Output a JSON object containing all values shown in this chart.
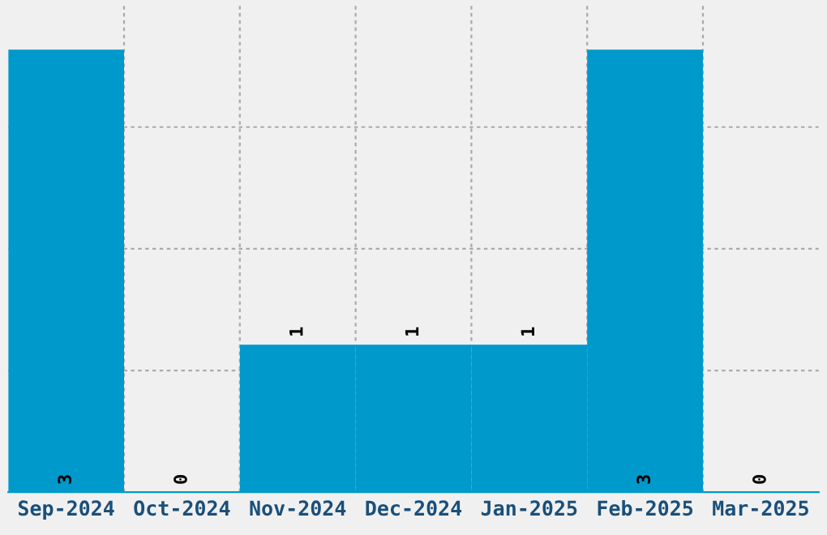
{
  "chart_data": {
    "type": "bar",
    "categories": [
      "Sep-2024",
      "Oct-2024",
      "Nov-2024",
      "Dec-2024",
      "Jan-2025",
      "Feb-2025",
      "Mar-2025"
    ],
    "values": [
      3,
      0,
      1,
      1,
      1,
      3,
      0
    ],
    "color": "#0099cc",
    "data_labels": true,
    "ylim": [
      0,
      3.3
    ],
    "yticks": [
      {
        "value": 0.825,
        "label": null
      },
      {
        "value": 1.65,
        "label": null
      },
      {
        "value": 2.475,
        "label": null
      }
    ],
    "tick_labels": "x",
    "grid": true
  }
}
